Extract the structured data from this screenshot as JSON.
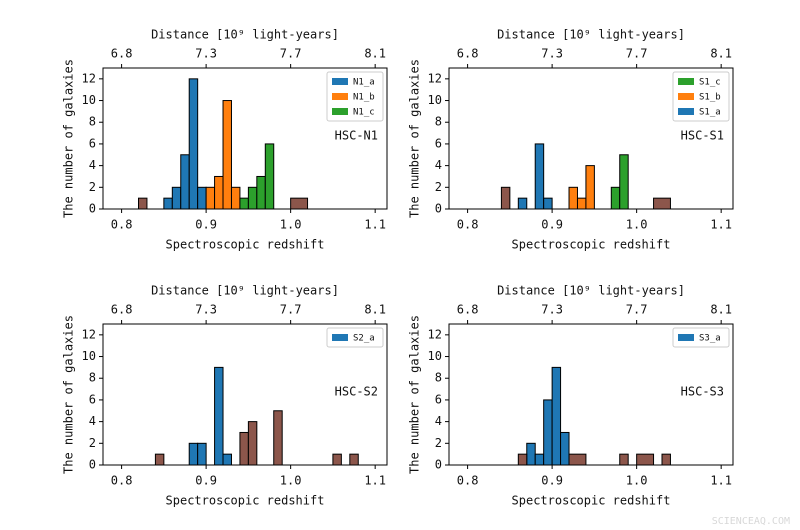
{
  "chart_data": [
    {
      "type": "histogram",
      "xlabel": "Spectroscopic redshift",
      "ylabel": "The number of galaxies",
      "x2label": "Distance [10⁹ light-years]",
      "annotation": "HSC-N1",
      "xlim": [
        0.778,
        1.114
      ],
      "ylim": [
        0,
        13
      ],
      "xticks": [
        0.8,
        0.9,
        {
          "value": 1,
          "label": "1.0"
        },
        1.1
      ],
      "x2ticks": [
        {
          "value": 0.8,
          "label": "6.8"
        },
        {
          "value": 0.9,
          "label": "7.3"
        },
        {
          "value": 1,
          "label": "7.7"
        },
        {
          "value": 1.1,
          "label": "8.1"
        }
      ],
      "yticks": [
        0,
        2,
        4,
        6,
        8,
        10,
        12
      ],
      "legend": "upper right",
      "series": [
        {
          "name": "N1_a",
          "color": "#1f77b4",
          "bins": [
            0.85,
            0.86,
            0.87,
            0.88,
            0.89,
            0.9
          ],
          "values": [
            1,
            2,
            5,
            12,
            2
          ]
        },
        {
          "name": "N1_b",
          "color": "#ff7f0e",
          "bins": [
            0.9,
            0.91,
            0.92,
            0.93,
            0.94
          ],
          "values": [
            2,
            3,
            10,
            2
          ]
        },
        {
          "name": "N1_c",
          "color": "#2ca02c",
          "bins": [
            0.94,
            0.95,
            0.96,
            0.97,
            0.98
          ],
          "values": [
            1,
            2,
            3,
            6
          ]
        },
        {
          "color": "#8c564b",
          "bins": [
            0.82,
            0.83,
            1,
            1.02
          ],
          "values": [
            1,
            0,
            1
          ]
        }
      ]
    },
    {
      "type": "histogram",
      "xlabel": "Spectroscopic redshift",
      "ylabel": "The number of galaxies",
      "x2label": "Distance [10⁹ light-years]",
      "annotation": "HSC-S1",
      "xlim": [
        0.778,
        1.114
      ],
      "ylim": [
        0,
        13
      ],
      "xticks": [
        0.8,
        0.9,
        {
          "value": 1,
          "label": "1.0"
        },
        1.1
      ],
      "x2ticks": [
        {
          "value": 0.8,
          "label": "6.8"
        },
        {
          "value": 0.9,
          "label": "7.3"
        },
        {
          "value": 1,
          "label": "7.7"
        },
        {
          "value": 1.1,
          "label": "8.1"
        }
      ],
      "yticks": [
        0,
        2,
        4,
        6,
        8,
        10,
        12
      ],
      "legend": "upper right",
      "series": [
        {
          "name": "S1_c",
          "color": "#2ca02c",
          "bins": [
            0.97,
            0.98,
            0.99
          ],
          "values": [
            2,
            5
          ]
        },
        {
          "name": "S1_b",
          "color": "#ff7f0e",
          "bins": [
            0.92,
            0.93,
            0.94,
            0.95
          ],
          "values": [
            2,
            1,
            4
          ]
        },
        {
          "name": "S1_a",
          "color": "#1f77b4",
          "bins": [
            0.86,
            0.87,
            0.88,
            0.89,
            0.9
          ],
          "values": [
            1,
            0,
            6,
            1
          ]
        },
        {
          "color": "#8c564b",
          "bins": [
            0.84,
            0.85,
            1.02,
            1.04
          ],
          "values": [
            2,
            0,
            1
          ]
        }
      ]
    },
    {
      "type": "histogram",
      "xlabel": "Spectroscopic redshift",
      "ylabel": "The number of galaxies",
      "x2label": "Distance [10⁹ light-years]",
      "annotation": "HSC-S2",
      "xlim": [
        0.778,
        1.114
      ],
      "ylim": [
        0,
        13
      ],
      "xticks": [
        0.8,
        0.9,
        {
          "value": 1,
          "label": "1.0"
        },
        1.1
      ],
      "x2ticks": [
        {
          "value": 0.8,
          "label": "6.8"
        },
        {
          "value": 0.9,
          "label": "7.3"
        },
        {
          "value": 1,
          "label": "7.7"
        },
        {
          "value": 1.1,
          "label": "8.1"
        }
      ],
      "yticks": [
        0,
        2,
        4,
        6,
        8,
        10,
        12
      ],
      "legend": "upper right",
      "series": [
        {
          "name": "S2_a",
          "color": "#1f77b4",
          "bins": [
            0.88,
            0.89,
            0.9,
            0.91,
            0.92,
            0.93
          ],
          "values": [
            2,
            2,
            0,
            9,
            1
          ]
        },
        {
          "color": "#8c564b",
          "bins": [
            0.84,
            0.85,
            0.94,
            0.95,
            0.96,
            0.98,
            0.99,
            1.05,
            1.06,
            1.07,
            1.08
          ],
          "values": [
            1,
            0,
            3,
            4,
            0,
            5,
            0,
            1,
            0,
            1
          ]
        }
      ]
    },
    {
      "type": "histogram",
      "xlabel": "Spectroscopic redshift",
      "ylabel": "The number of galaxies",
      "x2label": "Distance [10⁹ light-years]",
      "annotation": "HSC-S3",
      "xlim": [
        0.778,
        1.114
      ],
      "ylim": [
        0,
        13
      ],
      "xticks": [
        0.8,
        0.9,
        {
          "value": 1,
          "label": "1.0"
        },
        1.1
      ],
      "x2ticks": [
        {
          "value": 0.8,
          "label": "6.8"
        },
        {
          "value": 0.9,
          "label": "7.3"
        },
        {
          "value": 1,
          "label": "7.7"
        },
        {
          "value": 1.1,
          "label": "8.1"
        }
      ],
      "yticks": [
        0,
        2,
        4,
        6,
        8,
        10,
        12
      ],
      "legend": "upper right",
      "series": [
        {
          "name": "S3_a",
          "color": "#1f77b4",
          "bins": [
            0.87,
            0.88,
            0.89,
            0.9,
            0.91,
            0.92
          ],
          "values": [
            2,
            1,
            6,
            9,
            3
          ]
        },
        {
          "color": "#8c564b",
          "bins": [
            0.86,
            0.87,
            0.92,
            0.94,
            0.98,
            0.99,
            1,
            1.02,
            1.03,
            1.04
          ],
          "values": [
            1,
            0,
            1,
            0,
            1,
            0,
            1,
            0,
            1
          ]
        }
      ]
    }
  ],
  "watermark": "SCIENCEAQ.COM"
}
